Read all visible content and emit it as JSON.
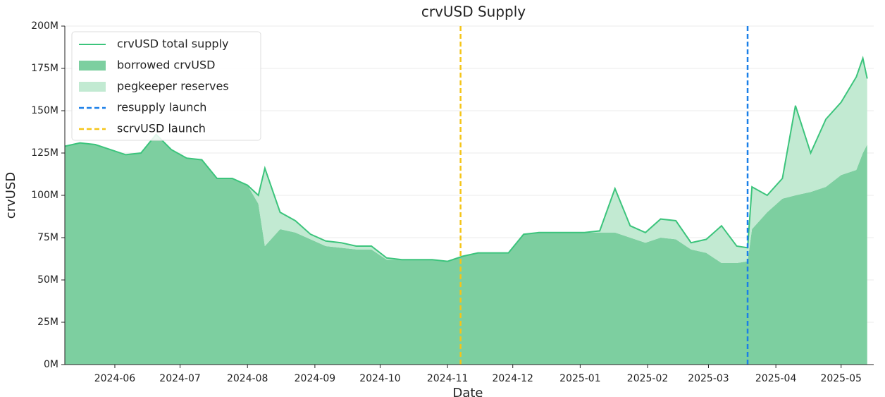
{
  "chart_data": {
    "type": "area",
    "title": "crvUSD Supply",
    "xlabel": "Date",
    "ylabel": "crvUSD",
    "x": [
      "2024-05-09",
      "2024-05-16",
      "2024-05-23",
      "2024-05-30",
      "2024-06-06",
      "2024-06-13",
      "2024-06-20",
      "2024-06-27",
      "2024-07-04",
      "2024-07-11",
      "2024-07-18",
      "2024-07-25",
      "2024-08-01",
      "2024-08-06",
      "2024-08-09",
      "2024-08-16",
      "2024-08-23",
      "2024-08-30",
      "2024-09-06",
      "2024-09-13",
      "2024-09-20",
      "2024-09-27",
      "2024-10-04",
      "2024-10-11",
      "2024-10-18",
      "2024-10-25",
      "2024-11-01",
      "2024-11-08",
      "2024-11-15",
      "2024-11-22",
      "2024-11-29",
      "2024-12-06",
      "2024-12-13",
      "2024-12-20",
      "2024-12-27",
      "2025-01-03",
      "2025-01-10",
      "2025-01-17",
      "2025-01-24",
      "2025-01-31",
      "2025-02-07",
      "2025-02-14",
      "2025-02-21",
      "2025-02-28",
      "2025-03-07",
      "2025-03-14",
      "2025-03-19",
      "2025-03-21",
      "2025-03-28",
      "2025-04-04",
      "2025-04-10",
      "2025-04-17",
      "2025-04-24",
      "2025-05-01",
      "2025-05-08",
      "2025-05-11",
      "2025-05-13"
    ],
    "series": [
      {
        "name": "crvUSD total supply",
        "kind": "line",
        "color": "#3cc47c",
        "values": [
          129,
          131,
          130,
          127,
          124,
          125,
          136,
          127,
          122,
          121,
          110,
          110,
          106,
          100,
          116,
          90,
          85,
          77,
          73,
          72,
          70,
          70,
          63,
          62,
          62,
          62,
          61,
          64,
          66,
          66,
          66,
          77,
          78,
          78,
          78,
          78,
          79,
          104,
          82,
          78,
          86,
          85,
          72,
          74,
          82,
          70,
          69,
          105,
          100,
          110,
          153,
          125,
          145,
          155,
          170,
          181,
          169
        ]
      },
      {
        "name": "borrowed crvUSD",
        "kind": "area",
        "color": "#7dcfa0",
        "values": [
          129,
          131,
          130,
          127,
          124,
          125,
          136,
          127,
          122,
          121,
          110,
          110,
          106,
          95,
          70,
          80,
          78,
          74,
          70,
          69,
          68,
          68,
          62,
          62,
          62,
          62,
          61,
          64,
          66,
          66,
          66,
          77,
          78,
          78,
          78,
          78,
          78,
          78,
          75,
          72,
          75,
          74,
          68,
          66,
          60,
          60,
          61,
          80,
          90,
          98,
          100,
          102,
          105,
          112,
          115,
          125,
          130
        ]
      },
      {
        "name": "pegkeeper reserves",
        "kind": "area",
        "color": "#c2ead2",
        "values": [
          0,
          0,
          0,
          0,
          0,
          0,
          0,
          0,
          0,
          0,
          0,
          0,
          0,
          5,
          46,
          10,
          7,
          3,
          3,
          3,
          2,
          2,
          1,
          0,
          0,
          0,
          0,
          0,
          0,
          0,
          0,
          0,
          0,
          0,
          0,
          0,
          1,
          26,
          7,
          6,
          11,
          11,
          4,
          8,
          22,
          10,
          8,
          25,
          10,
          12,
          53,
          23,
          40,
          43,
          55,
          56,
          39
        ]
      }
    ],
    "vlines": [
      {
        "name": "resupply launch",
        "x": "2025-03-19",
        "color": "#1a7fe8"
      },
      {
        "name": "scrvUSD launch",
        "x": "2024-11-07",
        "color": "#f5c518"
      }
    ],
    "xlim": [
      "2024-05-09",
      "2025-05-16"
    ],
    "xticks": [
      {
        "value": "2024-06-01",
        "label": "2024-06"
      },
      {
        "value": "2024-07-01",
        "label": "2024-07"
      },
      {
        "value": "2024-08-01",
        "label": "2024-08"
      },
      {
        "value": "2024-09-01",
        "label": "2024-09"
      },
      {
        "value": "2024-10-01",
        "label": "2024-10"
      },
      {
        "value": "2024-11-01",
        "label": "2024-11"
      },
      {
        "value": "2024-12-01",
        "label": "2024-12"
      },
      {
        "value": "2025-01-01",
        "label": "2025-01"
      },
      {
        "value": "2025-02-01",
        "label": "2025-02"
      },
      {
        "value": "2025-03-01",
        "label": "2025-03"
      },
      {
        "value": "2025-04-01",
        "label": "2025-04"
      },
      {
        "value": "2025-05-01",
        "label": "2025-05"
      }
    ],
    "ylim": [
      0,
      200
    ],
    "yticks": [
      {
        "value": 0,
        "label": "0M"
      },
      {
        "value": 25,
        "label": "25M"
      },
      {
        "value": 50,
        "label": "50M"
      },
      {
        "value": 75,
        "label": "75M"
      },
      {
        "value": 100,
        "label": "100M"
      },
      {
        "value": 125,
        "label": "125M"
      },
      {
        "value": 150,
        "label": "150M"
      },
      {
        "value": 175,
        "label": "175M"
      },
      {
        "value": 200,
        "label": "200M"
      }
    ],
    "grid": true,
    "legend": "upper left"
  }
}
